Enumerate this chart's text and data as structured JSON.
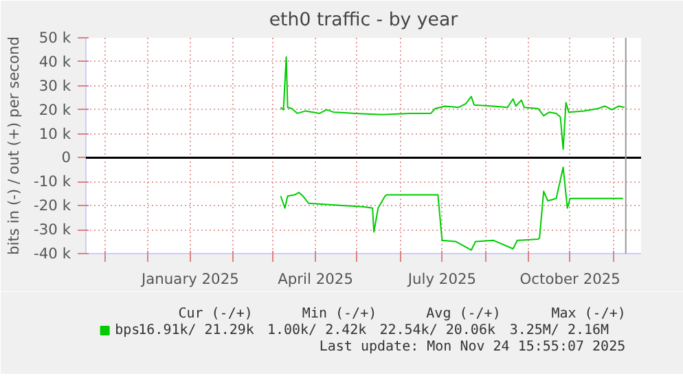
{
  "chart_data": {
    "type": "line",
    "title": "eth0 traffic - by year",
    "ylabel": "bits in (-) / out (+) per second",
    "xlim": [
      "2024-10-18",
      "2025-11-21"
    ],
    "xticks": [
      {
        "value": "2024-11-01",
        "label": null
      },
      {
        "value": "2024-12-01",
        "label": null
      },
      {
        "value": "2025-01-01",
        "label": "January 2025"
      },
      {
        "value": "2025-02-01",
        "label": null
      },
      {
        "value": "2025-03-01",
        "label": null
      },
      {
        "value": "2025-04-01",
        "label": "April 2025"
      },
      {
        "value": "2025-05-01",
        "label": null
      },
      {
        "value": "2025-06-01",
        "label": null
      },
      {
        "value": "2025-07-01",
        "label": "July 2025"
      },
      {
        "value": "2025-08-01",
        "label": null
      },
      {
        "value": "2025-09-01",
        "label": null
      },
      {
        "value": "2025-10-01",
        "label": "October 2025"
      },
      {
        "value": "2025-11-01",
        "label": null
      }
    ],
    "ylim": [
      -40000,
      50000
    ],
    "yticks": [
      {
        "value": -40000,
        "label": "-40 k"
      },
      {
        "value": -30000,
        "label": "-30 k"
      },
      {
        "value": -20000,
        "label": "-20 k"
      },
      {
        "value": -10000,
        "label": "-10 k"
      },
      0,
      {
        "value": 10000,
        "label": "10 k"
      },
      {
        "value": 20000,
        "label": "20 k"
      },
      {
        "value": 30000,
        "label": "30 k"
      },
      {
        "value": 40000,
        "label": "40 k"
      },
      {
        "value": 50000,
        "label": "50 k"
      }
    ],
    "grid": true,
    "legend": "bottom",
    "series": [
      {
        "name": "bps",
        "color": "#00cc00",
        "x": [
          "2025-03-07",
          "2025-03-09",
          "2025-03-11",
          "2025-03-12",
          "2025-03-15",
          "2025-03-19",
          "2025-03-25",
          "2025-04-04",
          "2025-04-09",
          "2025-04-14",
          "2025-04-29",
          "2025-05-19",
          "2025-06-08",
          "2025-06-23",
          "2025-06-26",
          "2025-07-03",
          "2025-07-13",
          "2025-07-18",
          "2025-07-22",
          "2025-07-24",
          "2025-08-07",
          "2025-08-17",
          "2025-08-21",
          "2025-08-23",
          "2025-08-27",
          "2025-08-29",
          "2025-09-08",
          "2025-09-12",
          "2025-09-16",
          "2025-09-21",
          "2025-09-24",
          "2025-09-26",
          "2025-09-28",
          "2025-09-30",
          "2025-10-11",
          "2025-10-21",
          "2025-10-26",
          "2025-10-31",
          "2025-11-05",
          "2025-11-09"
        ],
        "values": [
          21000,
          20000,
          42000,
          21000,
          20500,
          18500,
          19500,
          18500,
          20000,
          19000,
          18500,
          18000,
          18500,
          18500,
          20500,
          21500,
          21000,
          22500,
          25500,
          22000,
          21500,
          21000,
          24500,
          21500,
          24000,
          21000,
          20500,
          17500,
          19000,
          18500,
          17000,
          3500,
          23000,
          19000,
          19500,
          20500,
          21500,
          20000,
          21500,
          21000
        ]
      },
      {
        "color": "#00cc00",
        "x": [
          "2025-03-07",
          "2025-03-10",
          "2025-03-12",
          "2025-03-17",
          "2025-03-20",
          "2025-03-23",
          "2025-03-27",
          "2025-04-09",
          "2025-04-22",
          "2025-05-06",
          "2025-05-12",
          "2025-05-13",
          "2025-05-16",
          "2025-05-21",
          "2025-05-22",
          "2025-06-08",
          "2025-06-28",
          "2025-07-01",
          "2025-07-11",
          "2025-07-22",
          "2025-07-25",
          "2025-08-07",
          "2025-08-21",
          "2025-08-24",
          "2025-09-08",
          "2025-09-09",
          "2025-09-12",
          "2025-09-15",
          "2025-09-21",
          "2025-09-26",
          "2025-09-29",
          "2025-10-01",
          "2025-10-19",
          "2025-11-08"
        ],
        "values": [
          -16000,
          -21000,
          -16000,
          -15500,
          -14500,
          -16000,
          -19000,
          -19500,
          -20000,
          -20500,
          -21000,
          -31000,
          -21000,
          -16000,
          -15500,
          -15500,
          -15500,
          -34500,
          -35000,
          -38500,
          -35000,
          -34500,
          -38000,
          -34500,
          -34000,
          -33500,
          -14000,
          -18000,
          -17000,
          -4000,
          -21000,
          -17000,
          -17000,
          -17000
        ]
      }
    ],
    "ref_lines": [
      {
        "axis": "y",
        "value": 0,
        "color": "#000000"
      },
      {
        "axis": "x",
        "value": "2025-11-10",
        "color": "#999999"
      }
    ],
    "annotations": [
      "Cur (-/+)",
      "Min (-/+)",
      "Avg (-/+)",
      "Max (-/+)",
      "16.91k/  21.29k",
      "1.00k/   2.42k",
      "22.54k/  20.06k",
      "3.25M/   2.16M",
      "Last update: Mon Nov 24 15:55:07 2025"
    ]
  }
}
